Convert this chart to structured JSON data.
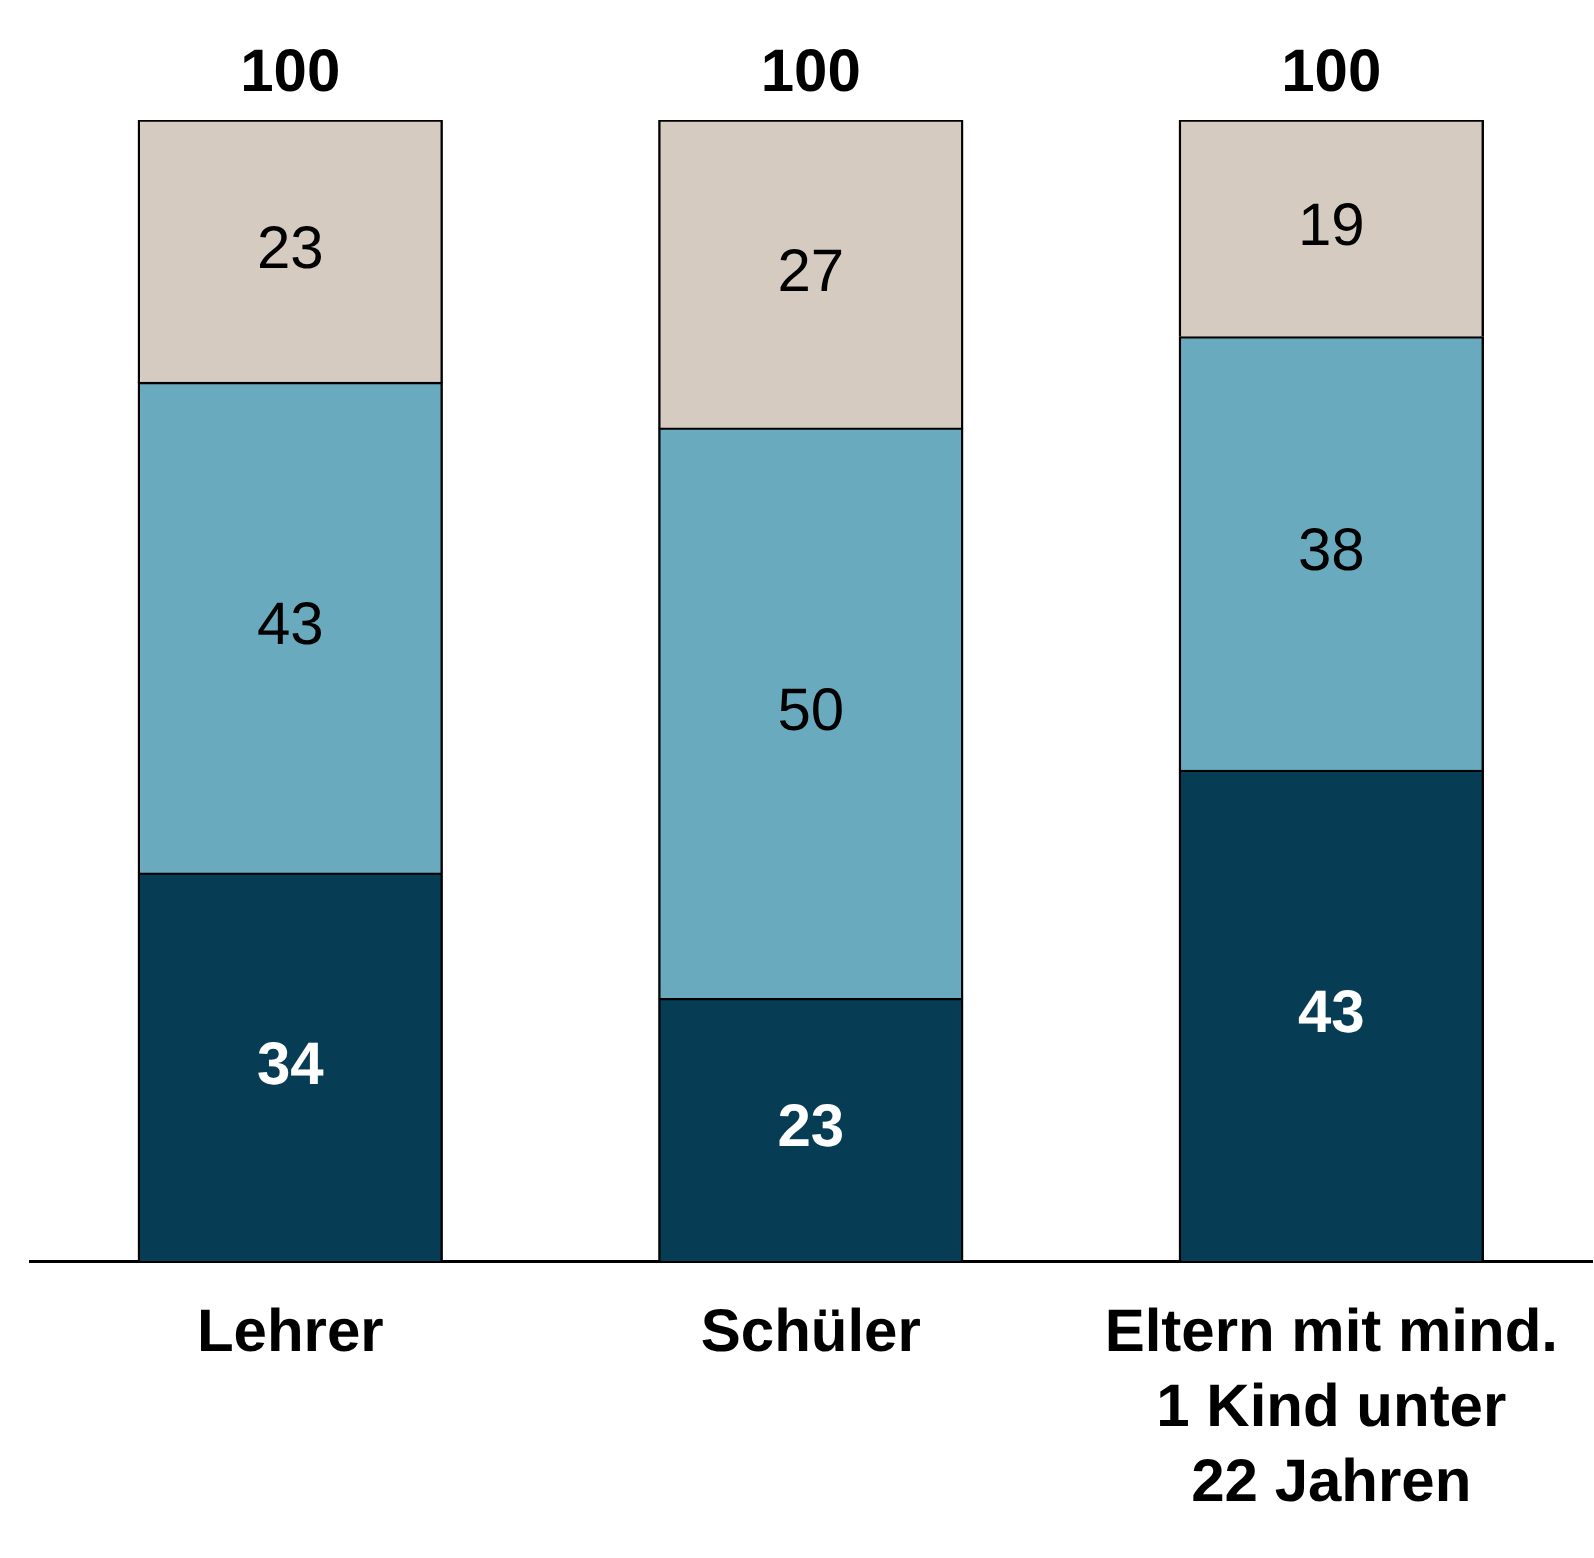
{
  "chart_data": {
    "type": "bar",
    "stacked": true,
    "categories": [
      "Lehrer",
      "Schüler",
      "Eltern mit mind.\n1 Kind unter\n22 Jahren"
    ],
    "series": [
      {
        "color": "#063d55",
        "values": [
          34,
          23,
          43
        ]
      },
      {
        "color": "#6aaabf",
        "values": [
          43,
          50,
          38
        ]
      },
      {
        "color": "#d6cbc1",
        "values": [
          23,
          27,
          19
        ]
      }
    ],
    "ylim": [
      0,
      100
    ],
    "tick_labels": "x",
    "data_labels": true,
    "totals": [
      "100",
      "100",
      "100"
    ],
    "grid": false,
    "legend": false
  }
}
